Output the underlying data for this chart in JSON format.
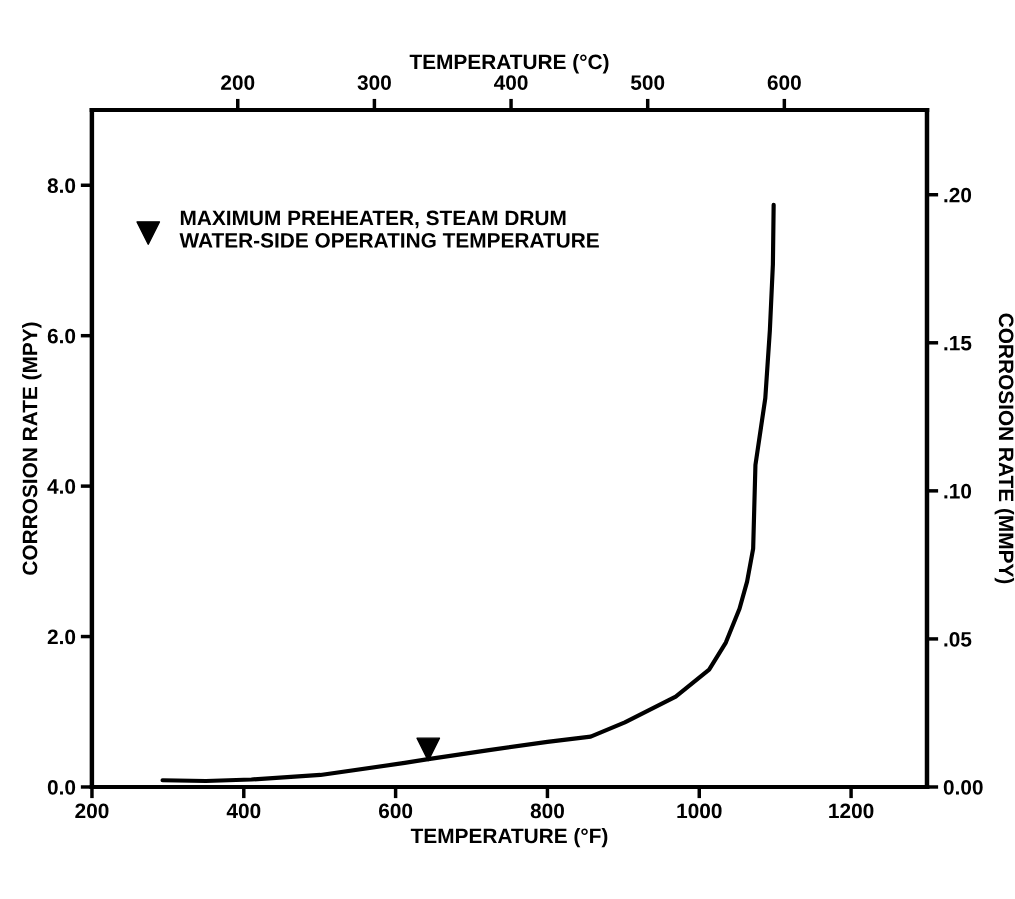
{
  "chart_data": {
    "type": "line",
    "xlabel": "TEMPERATURE (°F)",
    "ylabel": "CORROSION RATE (MPY)",
    "y2label": "CORROSION RATE (MMPY)",
    "x2label": "TEMPERATURE (°C)",
    "xlim": [
      200,
      1300
    ],
    "xticks": [
      200,
      400,
      600,
      800,
      1000,
      1200
    ],
    "ylim": [
      0,
      9
    ],
    "yticks": [
      {
        "value": 0,
        "label": "0.0"
      },
      {
        "value": 2,
        "label": "2.0"
      },
      {
        "value": 4,
        "label": "4.0"
      },
      {
        "value": 6,
        "label": "6.0"
      },
      {
        "value": 8,
        "label": "8.0"
      }
    ],
    "y2lim": [
      0,
      0.2286
    ],
    "y2ticks": [
      {
        "value": 0,
        "label": "0.00"
      },
      {
        "value": 0.05,
        "label": ".05"
      },
      {
        "value": 0.1,
        "label": ".10"
      },
      {
        "value": 0.15,
        "label": ".15"
      },
      {
        "value": 0.2,
        "label": ".20"
      }
    ],
    "x2lim": [
      93.3,
      704.4
    ],
    "x2ticks": [
      200,
      300,
      400,
      500,
      600
    ],
    "legend": "top left",
    "series": [
      {
        "color": "#000000",
        "marker": "none",
        "x": [
          293,
          350,
          410,
          501,
          612,
          643,
          723,
          800,
          857,
          902,
          969,
          1013,
          1035,
          1053,
          1063,
          1071,
          1074,
          1087,
          1093,
          1097,
          1098
        ],
        "values": [
          0.09,
          0.08,
          0.1,
          0.16,
          0.32,
          0.37,
          0.49,
          0.6,
          0.67,
          0.86,
          1.2,
          1.56,
          1.92,
          2.37,
          2.73,
          3.17,
          4.28,
          5.17,
          6.07,
          6.95,
          7.74
        ]
      },
      {
        "type": "scatter",
        "name": "MAXIMUM PREHEATER, STEAM DRUM\nWATER-SIDE OPERATING TEMPERATURE",
        "color": "#000000",
        "marker": "triangle",
        "x": [
          643
        ],
        "values": [
          0.5
        ]
      }
    ]
  }
}
